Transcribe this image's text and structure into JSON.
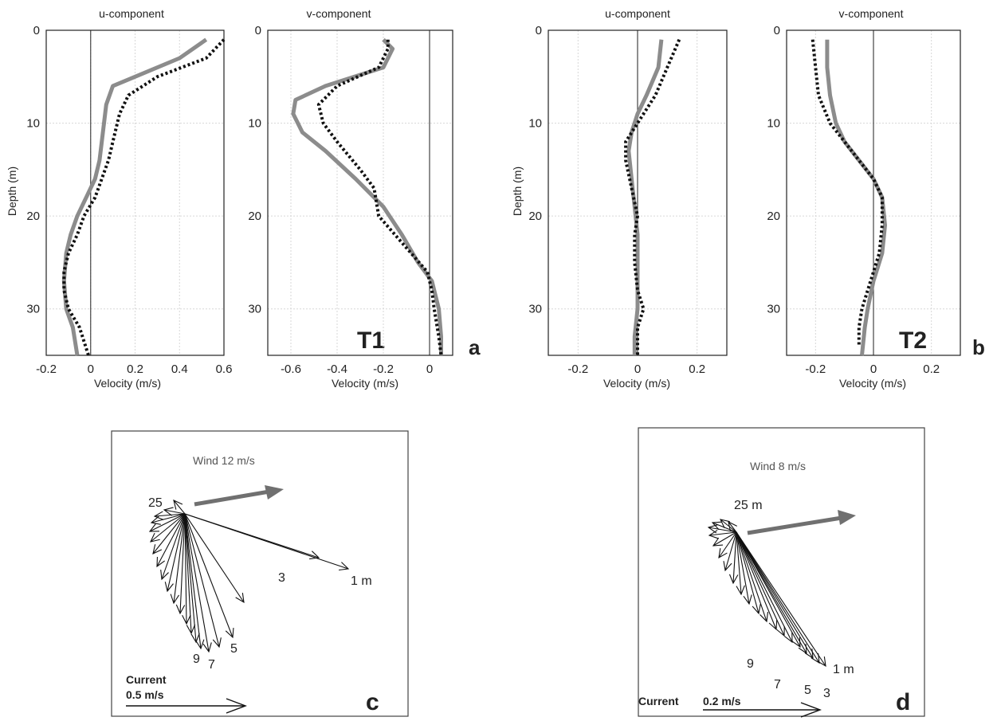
{
  "chart_data": [
    {
      "type": "line",
      "panel": "a",
      "title": "u-component",
      "xlabel": "Velocity (m/s)",
      "ylabel": "Depth (m)",
      "xlim": [
        -0.2,
        0.6
      ],
      "ylim": [
        35,
        0
      ],
      "x_ticks": [
        "-0.2",
        "0",
        "0.2",
        "0.4",
        "0.6"
      ],
      "y_ticks": [
        "0",
        "10",
        "20",
        "30"
      ],
      "grid": true,
      "series": [
        {
          "style": "solid-gray",
          "points": [
            [
              0.52,
              1
            ],
            [
              0.4,
              3
            ],
            [
              0.2,
              5
            ],
            [
              0.1,
              6
            ],
            [
              0.07,
              8
            ],
            [
              0.06,
              10
            ],
            [
              0.05,
              12
            ],
            [
              0.04,
              14
            ],
            [
              0.02,
              16
            ],
            [
              -0.02,
              18
            ],
            [
              -0.06,
              20
            ],
            [
              -0.09,
              22
            ],
            [
              -0.11,
              24
            ],
            [
              -0.12,
              27
            ],
            [
              -0.11,
              30
            ],
            [
              -0.08,
              32
            ],
            [
              -0.06,
              35
            ]
          ]
        },
        {
          "style": "dotted-black",
          "points": [
            [
              0.6,
              1
            ],
            [
              0.52,
              3
            ],
            [
              0.3,
              5
            ],
            [
              0.17,
              7
            ],
            [
              0.13,
              9
            ],
            [
              0.1,
              12
            ],
            [
              0.08,
              14
            ],
            [
              0.05,
              16
            ],
            [
              0.02,
              18
            ],
            [
              -0.03,
              20
            ],
            [
              -0.06,
              22
            ],
            [
              -0.1,
              24
            ],
            [
              -0.12,
              26
            ],
            [
              -0.12,
              28
            ],
            [
              -0.1,
              30
            ],
            [
              -0.05,
              32
            ],
            [
              -0.01,
              35
            ]
          ]
        }
      ]
    },
    {
      "type": "line",
      "panel": "a",
      "title": "v-component",
      "tag": "T1",
      "xlabel": "Velocity (m/s)",
      "xlim": [
        -0.7,
        0.1
      ],
      "ylim": [
        35,
        0
      ],
      "x_ticks": [
        "-0.6",
        "-0.4",
        "-0.2",
        "0"
      ],
      "y_ticks": [
        "0",
        "10",
        "20",
        "30"
      ],
      "grid": true,
      "series": [
        {
          "style": "solid-gray",
          "points": [
            [
              -0.2,
              1
            ],
            [
              -0.16,
              2
            ],
            [
              -0.2,
              4
            ],
            [
              -0.45,
              6
            ],
            [
              -0.58,
              7.5
            ],
            [
              -0.59,
              9
            ],
            [
              -0.55,
              11
            ],
            [
              -0.45,
              13
            ],
            [
              -0.32,
              16
            ],
            [
              -0.2,
              19
            ],
            [
              -0.12,
              22
            ],
            [
              -0.05,
              25
            ],
            [
              0.01,
              27
            ],
            [
              0.04,
              30
            ],
            [
              0.05,
              33
            ],
            [
              0.05,
              35
            ]
          ]
        },
        {
          "style": "dotted-black",
          "points": [
            [
              -0.18,
              1
            ],
            [
              -0.18,
              2
            ],
            [
              -0.22,
              4
            ],
            [
              -0.4,
              6
            ],
            [
              -0.48,
              8
            ],
            [
              -0.46,
              10
            ],
            [
              -0.4,
              12
            ],
            [
              -0.3,
              15
            ],
            [
              -0.24,
              17
            ],
            [
              -0.22,
              20
            ],
            [
              -0.15,
              22
            ],
            [
              -0.08,
              24
            ],
            [
              -0.01,
              26
            ],
            [
              0.01,
              28
            ],
            [
              0.02,
              30
            ],
            [
              0.04,
              33
            ],
            [
              0.05,
              35
            ]
          ]
        }
      ]
    },
    {
      "type": "line",
      "panel": "b",
      "title": "u-component",
      "xlabel": "Velocity (m/s)",
      "ylabel": "Depth (m)",
      "xlim": [
        -0.3,
        0.3
      ],
      "ylim": [
        35,
        0
      ],
      "x_ticks": [
        "-0.2",
        "0",
        "0.2"
      ],
      "y_ticks": [
        "0",
        "10",
        "20",
        "30"
      ],
      "grid": true,
      "series": [
        {
          "style": "solid-gray",
          "points": [
            [
              0.08,
              1
            ],
            [
              0.07,
              4
            ],
            [
              0.03,
              7
            ],
            [
              0.0,
              9
            ],
            [
              -0.02,
              11
            ],
            [
              -0.03,
              13
            ],
            [
              -0.02,
              16
            ],
            [
              -0.01,
              19
            ],
            [
              0.0,
              22
            ],
            [
              0.0,
              26
            ],
            [
              0.0,
              30
            ],
            [
              -0.01,
              33
            ],
            [
              -0.01,
              35
            ]
          ]
        },
        {
          "style": "dotted-black",
          "points": [
            [
              0.14,
              1
            ],
            [
              0.1,
              4
            ],
            [
              0.06,
              7
            ],
            [
              0.0,
              10
            ],
            [
              -0.04,
              12
            ],
            [
              -0.04,
              14
            ],
            [
              -0.02,
              17
            ],
            [
              0.0,
              20
            ],
            [
              -0.01,
              22
            ],
            [
              -0.01,
              25
            ],
            [
              0.0,
              28
            ],
            [
              0.02,
              30
            ],
            [
              0.0,
              32
            ],
            [
              0.0,
              35
            ]
          ]
        }
      ]
    },
    {
      "type": "line",
      "panel": "b",
      "title": "v-component",
      "tag": "T2",
      "xlabel": "Velocity (m/s)",
      "xlim": [
        -0.3,
        0.3
      ],
      "ylim": [
        35,
        0
      ],
      "x_ticks": [
        "-0.2",
        "0",
        "0.2"
      ],
      "y_ticks": [
        "0",
        "10",
        "20",
        "30"
      ],
      "grid": true,
      "series": [
        {
          "style": "solid-gray",
          "points": [
            [
              -0.16,
              1
            ],
            [
              -0.16,
              4
            ],
            [
              -0.15,
              7
            ],
            [
              -0.13,
              10
            ],
            [
              -0.1,
              12
            ],
            [
              -0.05,
              14
            ],
            [
              0.0,
              16
            ],
            [
              0.03,
              18
            ],
            [
              0.04,
              21
            ],
            [
              0.03,
              24
            ],
            [
              0.0,
              27
            ],
            [
              -0.02,
              30
            ],
            [
              -0.03,
              32
            ],
            [
              -0.04,
              35
            ]
          ]
        },
        {
          "style": "dotted-black",
          "points": [
            [
              -0.21,
              1
            ],
            [
              -0.2,
              4
            ],
            [
              -0.19,
              7
            ],
            [
              -0.15,
              10
            ],
            [
              -0.1,
              12
            ],
            [
              -0.05,
              14
            ],
            [
              0.0,
              16
            ],
            [
              0.03,
              18
            ],
            [
              0.03,
              21
            ],
            [
              0.02,
              24
            ],
            [
              -0.01,
              27
            ],
            [
              -0.04,
              30
            ],
            [
              -0.05,
              32
            ],
            [
              -0.05,
              34
            ]
          ]
        }
      ]
    },
    {
      "type": "vector",
      "panel": "c",
      "wind_label": "Wind 12 m/s",
      "depth_labels": [
        "25",
        "3",
        "1 m",
        "5",
        "7",
        "9"
      ],
      "scale_label_line1": "Current",
      "scale_label_line2": "0.5 m/s"
    },
    {
      "type": "vector",
      "panel": "d",
      "wind_label": "Wind 8 m/s",
      "depth_labels": [
        "25 m",
        "1 m",
        "9",
        "7",
        "5",
        "3"
      ],
      "scale_label_line1": "Current",
      "scale_label_line2": "0.2 m/s"
    }
  ],
  "panel_labels": {
    "a": "a",
    "b": "b",
    "c": "c",
    "d": "d"
  },
  "colors": {
    "model": "#8c8c8c",
    "observed": "#111111",
    "grid": "#d7d7d7",
    "wind_arrow": "#707070",
    "frame": "#444444"
  }
}
